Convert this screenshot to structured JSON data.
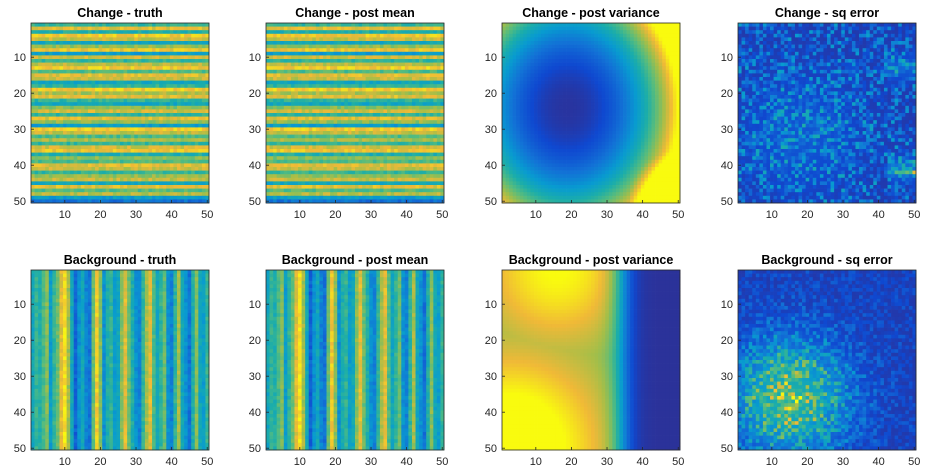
{
  "chart_data": [
    {
      "type": "heatmap",
      "title": "Change - truth",
      "pattern": "horizontal-bands",
      "seed": 11,
      "x_range": [
        1,
        50
      ],
      "y_range": [
        1,
        50
      ],
      "y_reversed": true,
      "xticks": [
        "10",
        "20",
        "30",
        "40",
        "50"
      ],
      "yticks": [
        "10",
        "20",
        "30",
        "40",
        "50"
      ],
      "band_levels": [
        0.55,
        0.85,
        0.5,
        0.9,
        0.8,
        0.45,
        0.72,
        0.88,
        0.4,
        0.82,
        0.55,
        0.78,
        0.9,
        0.6,
        0.85,
        0.8,
        0.45,
        0.55,
        0.9,
        0.75,
        0.85,
        0.55,
        0.45,
        0.7,
        0.82,
        0.55,
        0.85,
        0.72,
        0.4,
        0.9,
        0.8,
        0.6,
        0.75,
        0.55,
        0.82,
        0.88,
        0.5,
        0.7,
        0.6,
        0.85,
        0.8,
        0.55,
        0.72,
        0.8,
        0.45,
        0.85,
        0.62,
        0.78,
        0.4,
        0.25
      ]
    },
    {
      "type": "heatmap",
      "title": "Change - post mean",
      "pattern": "horizontal-bands",
      "seed": 23,
      "x_range": [
        1,
        50
      ],
      "y_range": [
        1,
        50
      ],
      "y_reversed": true,
      "xticks": [
        "10",
        "20",
        "30",
        "40",
        "50"
      ],
      "yticks": [
        "10",
        "20",
        "30",
        "40",
        "50"
      ],
      "band_levels": [
        0.55,
        0.85,
        0.5,
        0.9,
        0.8,
        0.45,
        0.72,
        0.88,
        0.4,
        0.82,
        0.55,
        0.78,
        0.9,
        0.6,
        0.85,
        0.8,
        0.45,
        0.55,
        0.9,
        0.75,
        0.85,
        0.55,
        0.45,
        0.7,
        0.82,
        0.55,
        0.85,
        0.72,
        0.4,
        0.9,
        0.8,
        0.6,
        0.75,
        0.55,
        0.82,
        0.88,
        0.5,
        0.7,
        0.6,
        0.85,
        0.8,
        0.55,
        0.72,
        0.8,
        0.45,
        0.85,
        0.62,
        0.78,
        0.4,
        0.25
      ]
    },
    {
      "type": "heatmap",
      "title": "Change - post variance",
      "pattern": "change-variance",
      "seed": 0,
      "x_range": [
        1,
        50
      ],
      "y_range": [
        1,
        50
      ],
      "y_reversed": true,
      "xticks": [
        "10",
        "20",
        "30",
        "40",
        "50"
      ],
      "yticks": [
        "10",
        "20",
        "30",
        "40",
        "50"
      ]
    },
    {
      "type": "heatmap",
      "title": "Change - sq error",
      "pattern": "change-error",
      "seed": 37,
      "x_range": [
        1,
        50
      ],
      "y_range": [
        1,
        50
      ],
      "y_reversed": true,
      "xticks": [
        "10",
        "20",
        "30",
        "40",
        "50"
      ],
      "yticks": [
        "10",
        "20",
        "30",
        "40",
        "50"
      ]
    },
    {
      "type": "heatmap",
      "title": "Background - truth",
      "pattern": "vertical-bands",
      "seed": 41,
      "x_range": [
        1,
        50
      ],
      "y_range": [
        1,
        50
      ],
      "y_reversed": true,
      "xticks": [
        "10",
        "20",
        "30",
        "40",
        "50"
      ],
      "yticks": [
        "10",
        "20",
        "30",
        "40",
        "50"
      ],
      "band_levels": [
        0.45,
        0.55,
        0.5,
        0.6,
        0.7,
        0.4,
        0.55,
        0.65,
        0.85,
        0.95,
        0.75,
        0.45,
        0.2,
        0.35,
        0.45,
        0.3,
        0.25,
        0.65,
        0.9,
        0.7,
        0.35,
        0.5,
        0.55,
        0.4,
        0.45,
        0.7,
        0.85,
        0.65,
        0.5,
        0.35,
        0.3,
        0.55,
        0.75,
        0.85,
        0.6,
        0.45,
        0.55,
        0.65,
        0.35,
        0.3,
        0.55,
        0.75,
        0.45,
        0.35,
        0.25,
        0.5,
        0.7,
        0.45,
        0.4,
        0.55
      ]
    },
    {
      "type": "heatmap",
      "title": "Background - post mean",
      "pattern": "vertical-bands",
      "seed": 53,
      "x_range": [
        1,
        50
      ],
      "y_range": [
        1,
        50
      ],
      "y_reversed": true,
      "xticks": [
        "10",
        "20",
        "30",
        "40",
        "50"
      ],
      "yticks": [
        "10",
        "20",
        "30",
        "40",
        "50"
      ],
      "band_levels": [
        0.45,
        0.55,
        0.5,
        0.6,
        0.7,
        0.4,
        0.55,
        0.65,
        0.85,
        0.95,
        0.75,
        0.45,
        0.2,
        0.35,
        0.45,
        0.3,
        0.25,
        0.65,
        0.9,
        0.7,
        0.35,
        0.5,
        0.55,
        0.4,
        0.45,
        0.7,
        0.85,
        0.65,
        0.5,
        0.35,
        0.3,
        0.55,
        0.75,
        0.85,
        0.6,
        0.45,
        0.55,
        0.65,
        0.35,
        0.3,
        0.55,
        0.75,
        0.45,
        0.35,
        0.25,
        0.5,
        0.7,
        0.45,
        0.4,
        0.55
      ]
    },
    {
      "type": "heatmap",
      "title": "Background - post variance",
      "pattern": "background-variance",
      "seed": 0,
      "x_range": [
        1,
        50
      ],
      "y_range": [
        1,
        50
      ],
      "y_reversed": true,
      "xticks": [
        "10",
        "20",
        "30",
        "40",
        "50"
      ],
      "yticks": [
        "10",
        "20",
        "30",
        "40",
        "50"
      ]
    },
    {
      "type": "heatmap",
      "title": "Background - sq error",
      "pattern": "background-error",
      "seed": 71,
      "x_range": [
        1,
        50
      ],
      "y_range": [
        1,
        50
      ],
      "y_reversed": true,
      "xticks": [
        "10",
        "20",
        "30",
        "40",
        "50"
      ],
      "yticks": [
        "10",
        "20",
        "30",
        "40",
        "50"
      ]
    }
  ],
  "colormap": "parula"
}
